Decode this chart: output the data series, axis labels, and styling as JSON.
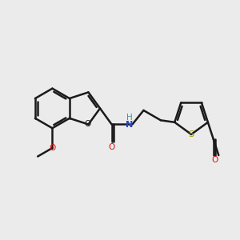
{
  "bg_color": "#ebebeb",
  "bond_color": "#1a1a1a",
  "bond_width": 1.8,
  "colors": {
    "O": "#dd1111",
    "N": "#2244cc",
    "S": "#999900",
    "H": "#449999",
    "C": "#1a1a1a"
  },
  "fig_bg": "#ebebeb"
}
